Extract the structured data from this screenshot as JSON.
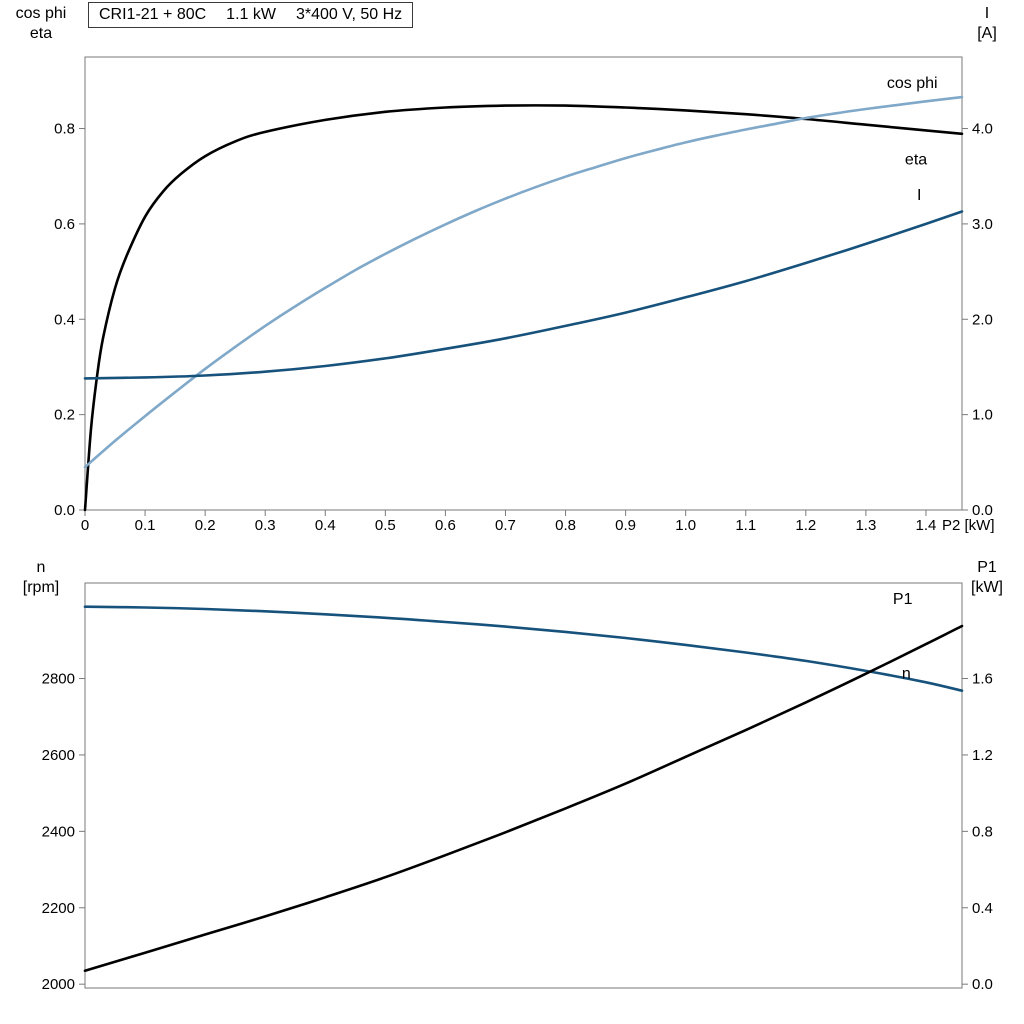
{
  "page": {
    "background": "#ffffff"
  },
  "title_box": {
    "parts": [
      "CRI1-21 + 80C",
      "1.1 kW",
      "3*400 V, 50 Hz"
    ]
  },
  "axis_corner_labels": {
    "top_left": [
      "cos phi",
      "eta"
    ],
    "top_right": [
      "I",
      "[A]"
    ],
    "bottom_left": [
      "n",
      "[rpm]"
    ],
    "bottom_right": [
      "P1",
      "[kW]"
    ]
  },
  "colors": {
    "black": "#000000",
    "dark_blue": "#16527c",
    "light_blue": "#7fa8c9",
    "frame": "#7a7a7a"
  },
  "chart_data": [
    {
      "type": "line",
      "title": "CRI1-21 + 80C 1.1 kW 3*400 V, 50 Hz",
      "xlabel": "P2 [kW]",
      "x_end_label": "P2 [kW]",
      "xlim": [
        0,
        1.46
      ],
      "x_ticks": {
        "values": [
          0,
          0.1,
          0.2,
          0.3,
          0.4,
          0.5,
          0.6,
          0.7,
          0.8,
          0.9,
          1.0,
          1.1,
          1.2,
          1.3,
          1.4
        ],
        "labels": [
          "0",
          "0.1",
          "0.2",
          "0.3",
          "0.4",
          "0.5",
          "0.6",
          "0.7",
          "0.8",
          "0.9",
          "1.0",
          "1.1",
          "1.2",
          "1.3",
          "1.4"
        ]
      },
      "left_axis": {
        "title": "cos phi / eta",
        "lim": [
          0,
          0.95
        ],
        "ticks": {
          "values": [
            0,
            0.2,
            0.4,
            0.6,
            0.8
          ],
          "labels": [
            "0.0",
            "0.2",
            "0.4",
            "0.6",
            "0.8"
          ]
        }
      },
      "right_axis": {
        "title": "I [A]",
        "lim": [
          0,
          4.75
        ],
        "ticks": {
          "values": [
            0,
            1,
            2,
            3,
            4
          ],
          "labels": [
            "0.0",
            "1.0",
            "2.0",
            "3.0",
            "4.0"
          ]
        }
      },
      "grid": false,
      "series": [
        {
          "name": "eta",
          "axis": "left",
          "color": "#000000",
          "label": {
            "text": "eta",
            "x": 1.365,
            "y": 0.725,
            "color": "#000000"
          },
          "points": [
            [
              0,
              0
            ],
            [
              0.01,
              0.17
            ],
            [
              0.02,
              0.28
            ],
            [
              0.03,
              0.36
            ],
            [
              0.05,
              0.465
            ],
            [
              0.07,
              0.535
            ],
            [
              0.1,
              0.615
            ],
            [
              0.13,
              0.668
            ],
            [
              0.16,
              0.705
            ],
            [
              0.2,
              0.742
            ],
            [
              0.25,
              0.773
            ],
            [
              0.3,
              0.793
            ],
            [
              0.4,
              0.818
            ],
            [
              0.5,
              0.835
            ],
            [
              0.6,
              0.844
            ],
            [
              0.7,
              0.848
            ],
            [
              0.8,
              0.848
            ],
            [
              0.9,
              0.844
            ],
            [
              1.0,
              0.838
            ],
            [
              1.1,
              0.83
            ],
            [
              1.2,
              0.82
            ],
            [
              1.3,
              0.808
            ],
            [
              1.4,
              0.796
            ],
            [
              1.46,
              0.789
            ]
          ]
        },
        {
          "name": "cos phi",
          "axis": "left",
          "color": "#7fa8c9",
          "label": {
            "text": "cos phi",
            "x": 1.335,
            "y": 0.885,
            "color": "#7fa8c9"
          },
          "points": [
            [
              0,
              0.09
            ],
            [
              0.05,
              0.145
            ],
            [
              0.1,
              0.197
            ],
            [
              0.15,
              0.247
            ],
            [
              0.2,
              0.296
            ],
            [
              0.25,
              0.342
            ],
            [
              0.3,
              0.386
            ],
            [
              0.35,
              0.427
            ],
            [
              0.4,
              0.466
            ],
            [
              0.45,
              0.503
            ],
            [
              0.5,
              0.537
            ],
            [
              0.55,
              0.569
            ],
            [
              0.6,
              0.599
            ],
            [
              0.65,
              0.627
            ],
            [
              0.7,
              0.653
            ],
            [
              0.75,
              0.677
            ],
            [
              0.8,
              0.699
            ],
            [
              0.85,
              0.719
            ],
            [
              0.9,
              0.738
            ],
            [
              0.95,
              0.755
            ],
            [
              1.0,
              0.771
            ],
            [
              1.05,
              0.785
            ],
            [
              1.1,
              0.798
            ],
            [
              1.15,
              0.81
            ],
            [
              1.2,
              0.822
            ],
            [
              1.25,
              0.832
            ],
            [
              1.3,
              0.841
            ],
            [
              1.35,
              0.849
            ],
            [
              1.4,
              0.857
            ],
            [
              1.46,
              0.866
            ]
          ]
        },
        {
          "name": "I",
          "axis": "right",
          "color": "#16527c",
          "label": {
            "text": "I",
            "x": 1.385,
            "y": 3.25,
            "color": "#16527c"
          },
          "points": [
            [
              0,
              1.38
            ],
            [
              0.1,
              1.39
            ],
            [
              0.2,
              1.41
            ],
            [
              0.3,
              1.45
            ],
            [
              0.4,
              1.51
            ],
            [
              0.5,
              1.59
            ],
            [
              0.6,
              1.69
            ],
            [
              0.7,
              1.8
            ],
            [
              0.8,
              1.93
            ],
            [
              0.9,
              2.07
            ],
            [
              1.0,
              2.23
            ],
            [
              1.1,
              2.4
            ],
            [
              1.2,
              2.59
            ],
            [
              1.3,
              2.79
            ],
            [
              1.4,
              3.0
            ],
            [
              1.46,
              3.13
            ]
          ]
        }
      ]
    },
    {
      "type": "line",
      "xlabel": "",
      "x_end_label": "",
      "xlim": [
        0,
        1.46
      ],
      "x_ticks": {
        "values": [],
        "labels": []
      },
      "left_axis": {
        "title": "n [rpm]",
        "lim": [
          1990,
          3050
        ],
        "ticks": {
          "values": [
            2000,
            2200,
            2400,
            2600,
            2800
          ],
          "labels": [
            "2000",
            "2200",
            "2400",
            "2600",
            "2800"
          ]
        }
      },
      "right_axis": {
        "title": "P1 [kW]",
        "lim": [
          -0.02,
          2.1
        ],
        "ticks": {
          "values": [
            0,
            0.4,
            0.8,
            1.2,
            1.6
          ],
          "labels": [
            "0.0",
            "0.4",
            "0.8",
            "1.2",
            "1.6"
          ]
        }
      },
      "grid": false,
      "series": [
        {
          "name": "n",
          "axis": "left",
          "color": "#16527c",
          "label": {
            "text": "n",
            "x": 1.36,
            "y": 2800,
            "color": "#4d86b3"
          },
          "points": [
            [
              0,
              2988
            ],
            [
              0.1,
              2986
            ],
            [
              0.2,
              2982
            ],
            [
              0.3,
              2976
            ],
            [
              0.4,
              2968
            ],
            [
              0.5,
              2959
            ],
            [
              0.6,
              2948
            ],
            [
              0.7,
              2936
            ],
            [
              0.8,
              2922
            ],
            [
              0.9,
              2906
            ],
            [
              1.0,
              2888
            ],
            [
              1.1,
              2868
            ],
            [
              1.2,
              2846
            ],
            [
              1.3,
              2820
            ],
            [
              1.4,
              2790
            ],
            [
              1.46,
              2768
            ]
          ]
        },
        {
          "name": "P1",
          "axis": "right",
          "color": "#000000",
          "label": {
            "text": "P1",
            "x": 1.345,
            "y": 1.99,
            "color": "#000000"
          },
          "points": [
            [
              0,
              0.07
            ],
            [
              0.1,
              0.165
            ],
            [
              0.2,
              0.26
            ],
            [
              0.3,
              0.355
            ],
            [
              0.4,
              0.455
            ],
            [
              0.5,
              0.56
            ],
            [
              0.6,
              0.675
            ],
            [
              0.7,
              0.795
            ],
            [
              0.8,
              0.92
            ],
            [
              0.9,
              1.05
            ],
            [
              1.0,
              1.19
            ],
            [
              1.1,
              1.33
            ],
            [
              1.2,
              1.475
            ],
            [
              1.3,
              1.625
            ],
            [
              1.4,
              1.78
            ],
            [
              1.46,
              1.875
            ]
          ]
        }
      ]
    }
  ]
}
